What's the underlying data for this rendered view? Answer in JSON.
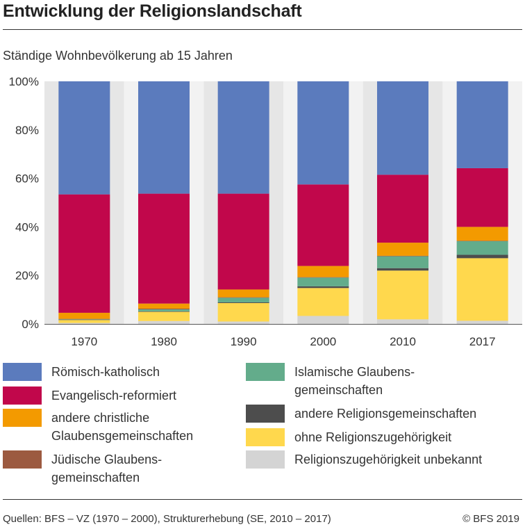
{
  "title": "Entwicklung der Religionslandschaft",
  "subtitle": "Ständige Wohnbevölkerung ab 15 Jahren",
  "chart_data": {
    "type": "bar",
    "stacked": true,
    "categories": [
      "1970",
      "1980",
      "1990",
      "2000",
      "2010",
      "2017"
    ],
    "ylim": [
      0,
      100
    ],
    "yticks": [
      "0%",
      "20%",
      "40%",
      "60%",
      "80%",
      "100%"
    ],
    "grid": false,
    "legend_position": "bottom",
    "series": [
      {
        "name": "Religionszugehörigkeit unbekannt",
        "color": "#d4d4d4",
        "values": [
          0.4,
          1.2,
          1.0,
          3.3,
          1.9,
          1.3
        ]
      },
      {
        "name": "ohne Religionszugehörigkeit",
        "color": "#ffd84d",
        "values": [
          1.2,
          3.8,
          7.6,
          11.5,
          20.1,
          25.8
        ]
      },
      {
        "name": "andere Religionsgemeinschaften",
        "color": "#4d4d4d",
        "values": [
          0.1,
          0.2,
          0.3,
          0.7,
          1.0,
          1.4
        ]
      },
      {
        "name": "Islamische Glaubens-\ngemeinschaften",
        "color": "#63ac8b",
        "values": [
          0.2,
          0.8,
          1.9,
          3.6,
          4.9,
          5.6
        ]
      },
      {
        "name": "Jüdische Glaubens-\ngemeinschaften",
        "color": "#9c5a40",
        "values": [
          0.2,
          0.3,
          0.2,
          0.2,
          0.2,
          0.2
        ]
      },
      {
        "name": "andere christliche\nGlaubensgemeinschaften",
        "color": "#f39a00",
        "values": [
          2.5,
          2.1,
          3.2,
          4.6,
          5.4,
          5.7
        ]
      },
      {
        "name": "Evangelisch-reformiert",
        "color": "#c1074b",
        "values": [
          48.8,
          45.3,
          39.5,
          33.6,
          28.0,
          24.2
        ]
      },
      {
        "name": "Römisch-katholisch",
        "color": "#5b7bbd",
        "values": [
          46.6,
          46.3,
          46.3,
          42.5,
          38.5,
          35.8
        ]
      }
    ]
  },
  "legend": [
    {
      "label": "Römisch-katholisch",
      "color": "#5b7bbd"
    },
    {
      "label": "Evangelisch-reformiert",
      "color": "#c1074b"
    },
    {
      "label": "andere christliche\nGlaubensgemeinschaften",
      "color": "#f39a00"
    },
    {
      "label": "Jüdische Glaubens-\ngemeinschaften",
      "color": "#9c5a40"
    },
    {
      "label": "Islamische Glaubens-\ngemeinschaften",
      "color": "#63ac8b"
    },
    {
      "label": "andere Religionsgemeinschaften",
      "color": "#4d4d4d"
    },
    {
      "label": "ohne Religionszugehörigkeit",
      "color": "#ffd84d"
    },
    {
      "label": "Religionszugehörigkeit unbekannt",
      "color": "#d4d4d4"
    }
  ],
  "footer": {
    "source": "Quellen: BFS – VZ (1970 – 2000), Strukturerhebung (SE, 2010 – 2017)",
    "copyright": "© BFS 2019"
  }
}
